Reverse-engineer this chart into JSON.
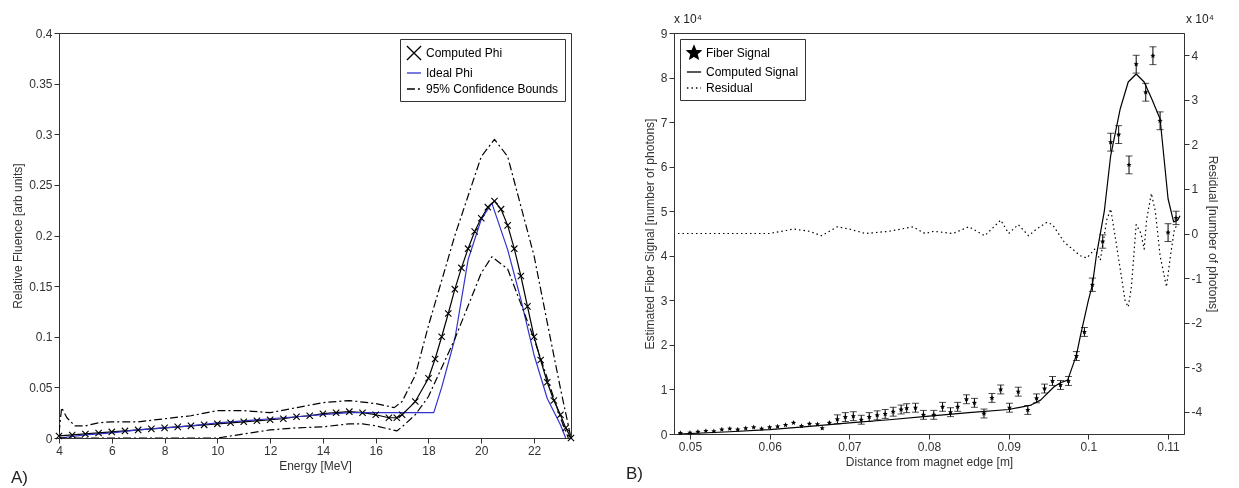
{
  "chart_data": [
    {
      "type": "line",
      "xlabel": "Energy [MeV]",
      "ylabel": "Relative Fluence [arb units]",
      "xlim": [
        4,
        23.4
      ],
      "ylim": [
        0,
        0.4
      ],
      "xticks": [
        4,
        6,
        8,
        10,
        12,
        14,
        16,
        18,
        20,
        22
      ],
      "yticks": [
        0,
        0.05,
        0.1,
        0.15,
        0.2,
        0.25,
        0.3,
        0.35,
        0.4
      ],
      "grid": false,
      "legend": "top right",
      "annotations": [
        "A)"
      ],
      "series": [
        {
          "name": "Computed Phi",
          "color": "#000000",
          "marker": "cross",
          "line_style": "solid",
          "x": [
            4,
            4.5,
            5,
            5.5,
            6,
            6.5,
            7,
            7.5,
            8,
            8.5,
            9,
            9.5,
            10,
            10.5,
            11,
            11.5,
            12,
            12.5,
            13,
            13.5,
            14,
            14.5,
            15,
            15.5,
            16,
            16.5,
            16.8,
            17,
            17.5,
            18,
            18.25,
            18.5,
            18.75,
            19,
            19.25,
            19.5,
            19.75,
            20,
            20.25,
            20.5,
            20.75,
            21,
            21.25,
            21.5,
            21.75,
            22,
            22.25,
            22.5,
            22.75,
            23,
            23.2,
            23.4
          ],
          "values": [
            0.002,
            0.003,
            0.004,
            0.005,
            0.006,
            0.007,
            0.008,
            0.009,
            0.01,
            0.011,
            0.012,
            0.013,
            0.014,
            0.015,
            0.016,
            0.017,
            0.018,
            0.019,
            0.021,
            0.022,
            0.024,
            0.025,
            0.026,
            0.025,
            0.023,
            0.02,
            0.02,
            0.023,
            0.036,
            0.059,
            0.078,
            0.1,
            0.123,
            0.147,
            0.168,
            0.187,
            0.204,
            0.217,
            0.228,
            0.234,
            0.226,
            0.21,
            0.187,
            0.16,
            0.13,
            0.1,
            0.077,
            0.055,
            0.037,
            0.023,
            0.01,
            0
          ]
        },
        {
          "name": "Ideal Phi",
          "color": "#3333cc",
          "line_style": "solid",
          "x": [
            4,
            5,
            6,
            7,
            8,
            9,
            10,
            11,
            12,
            13,
            14,
            15,
            16,
            16.8,
            18.2,
            18.5,
            19,
            19.5,
            20,
            20.4,
            21,
            21.5,
            22,
            22.5,
            23,
            23.2
          ],
          "values": [
            0,
            0.003,
            0.005,
            0.008,
            0.01,
            0.012,
            0.015,
            0.017,
            0.019,
            0.021,
            0.023,
            0.025,
            0.025,
            0.025,
            0.025,
            0.05,
            0.098,
            0.176,
            0.216,
            0.232,
            0.186,
            0.137,
            0.082,
            0.039,
            0.013,
            0
          ]
        },
        {
          "name": "95% Confidence Bounds",
          "color": "#000000",
          "line_style": "dashed",
          "x": [
            4,
            4.1,
            4.3,
            4.6,
            5,
            5.5,
            6,
            7,
            8,
            9,
            10,
            11,
            12,
            13,
            14,
            15,
            16,
            16.7,
            17,
            17.5,
            18,
            19,
            20,
            20.5,
            21,
            22,
            22.5,
            23,
            23.4
          ],
          "values": [
            0.005,
            0.03,
            0.02,
            0.012,
            0.012,
            0.015,
            0.016,
            0.016,
            0.019,
            0.022,
            0.027,
            0.027,
            0.025,
            0.03,
            0.035,
            0.037,
            0.034,
            0.03,
            0.036,
            0.062,
            0.111,
            0.2,
            0.278,
            0.295,
            0.278,
            0.18,
            0.114,
            0.049,
            0
          ]
        },
        {
          "color": "#000000",
          "line_style": "dashed",
          "x": [
            4,
            5,
            6,
            8,
            9,
            10,
            11,
            12,
            13,
            14,
            15,
            15.5,
            16,
            16.8,
            17,
            17.5,
            18,
            19,
            20,
            20.4,
            21,
            22,
            22.5,
            23,
            23.3
          ],
          "values": [
            0,
            0,
            0,
            0,
            0,
            0,
            0.004,
            0.008,
            0.01,
            0.011,
            0.014,
            0.014,
            0.012,
            0.007,
            0.011,
            0.023,
            0.041,
            0.098,
            0.163,
            0.179,
            0.167,
            0.098,
            0.059,
            0.02,
            0
          ]
        }
      ]
    },
    {
      "type": "scatter",
      "xlabel": "Distance from magnet edge [m]",
      "ylabel": "Estimated Fiber Signal [number of photons]",
      "y2label": "Residual [number of photons]",
      "xlim": [
        0.048,
        0.112
      ],
      "xticks": [
        0.05,
        0.06,
        0.07,
        0.08,
        0.09,
        0.1,
        0.11
      ],
      "ylim": [
        0,
        9
      ],
      "yticks": [
        0,
        1,
        2,
        3,
        4,
        5,
        6,
        7,
        8,
        9
      ],
      "y2lim": [
        -4.5,
        4.5
      ],
      "y2ticks": [
        -4,
        -3,
        -2,
        -1,
        0,
        1,
        2,
        3,
        4
      ],
      "grid": false,
      "legend": "top left",
      "annotations": [
        "B)",
        "x 10⁴",
        "x 10⁴"
      ],
      "series": [
        {
          "name": "Fiber Signal",
          "color": "#000000",
          "marker": "star",
          "x": [
            0.0488,
            0.05,
            0.051,
            0.052,
            0.053,
            0.054,
            0.055,
            0.056,
            0.057,
            0.058,
            0.059,
            0.06,
            0.061,
            0.062,
            0.063,
            0.064,
            0.065,
            0.066,
            0.0666,
            0.0675,
            0.0685,
            0.0695,
            0.0705,
            0.0715,
            0.0725,
            0.0735,
            0.0745,
            0.0755,
            0.0765,
            0.0772,
            0.0783,
            0.0793,
            0.0806,
            0.0817,
            0.0827,
            0.0836,
            0.0847,
            0.0857,
            0.0869,
            0.0879,
            0.089,
            0.0901,
            0.0912,
            0.0924,
            0.0935,
            0.0945,
            0.0955,
            0.0965,
            0.0975,
            0.0985,
            0.0995,
            0.1005,
            0.1018,
            0.1028,
            0.1038,
            0.1051,
            0.106,
            0.1072,
            0.1081,
            0.109,
            0.11,
            0.111
          ],
          "values": [
            0.02,
            0.03,
            0.05,
            0.07,
            0.06,
            0.1,
            0.12,
            0.1,
            0.13,
            0.15,
            0.12,
            0.15,
            0.17,
            0.2,
            0.25,
            0.18,
            0.23,
            0.22,
            0.13,
            0.25,
            0.33,
            0.38,
            0.4,
            0.32,
            0.38,
            0.42,
            0.45,
            0.5,
            0.55,
            0.58,
            0.59,
            0.43,
            0.43,
            0.61,
            0.49,
            0.61,
            0.78,
            0.7,
            0.46,
            0.81,
            1,
            0.59,
            0.95,
            0.54,
            0.8,
            1.02,
            1.19,
            1.1,
            1.19,
            1.75,
            2.29,
            3.35,
            4.32,
            6.55,
            6.72,
            6.04,
            8.3,
            7.67,
            8.49,
            7.03,
            4.52,
            4.85
          ],
          "errors": [
            null,
            null,
            null,
            null,
            null,
            null,
            null,
            null,
            null,
            null,
            null,
            null,
            null,
            null,
            null,
            null,
            null,
            null,
            null,
            null,
            0.1,
            0.1,
            0.1,
            0.1,
            0.1,
            0.1,
            0.1,
            0.1,
            0.1,
            0.1,
            0.1,
            0.1,
            0.1,
            0.1,
            0.1,
            0.1,
            0.1,
            0.1,
            0.1,
            0.1,
            0.1,
            0.1,
            0.1,
            0.1,
            0.1,
            0.1,
            0.1,
            0.1,
            0.1,
            0.1,
            0.1,
            0.15,
            0.15,
            0.2,
            0.2,
            0.2,
            0.2,
            0.2,
            0.2,
            0.2,
            0.2,
            0.15
          ]
        },
        {
          "name": "Computed Signal",
          "type": "line",
          "color": "#000000",
          "line_style": "solid",
          "x": [
            0.0485,
            0.055,
            0.06,
            0.065,
            0.07,
            0.075,
            0.08,
            0.085,
            0.09,
            0.0928,
            0.094,
            0.0957,
            0.0965,
            0.0974,
            0.0985,
            0.099,
            0.1,
            0.1005,
            0.101,
            0.102,
            0.1028,
            0.104,
            0.105,
            0.106,
            0.107,
            0.108,
            0.109,
            0.11,
            0.1107,
            0.1112,
            0.1115
          ],
          "values": [
            0,
            0.05,
            0.1,
            0.17,
            0.25,
            0.32,
            0.4,
            0.48,
            0.55,
            0.65,
            0.76,
            1.06,
            1.15,
            1.21,
            1.77,
            2.2,
            3.0,
            3.34,
            4.0,
            5.0,
            6.25,
            7.3,
            7.9,
            8.08,
            7.9,
            7.5,
            7.07,
            5.28,
            4.76,
            4.8,
            4.9
          ]
        },
        {
          "name": "Residual",
          "type": "line",
          "axis": "y2",
          "color": "#000000",
          "line_style": "dotted",
          "x": [
            0.0485,
            0.055,
            0.06,
            0.063,
            0.065,
            0.0665,
            0.0685,
            0.07,
            0.072,
            0.075,
            0.078,
            0.0795,
            0.0806,
            0.083,
            0.085,
            0.087,
            0.089,
            0.09,
            0.0912,
            0.0925,
            0.0935,
            0.0948,
            0.0955,
            0.097,
            0.099,
            0.0998,
            0.1008,
            0.1015,
            0.1023,
            0.1028,
            0.1033,
            0.104,
            0.1046,
            0.105,
            0.1054,
            0.106,
            0.1066,
            0.107,
            0.1073,
            0.1079,
            0.1084,
            0.109,
            0.1098,
            0.1103,
            0.1108,
            0.1112
          ],
          "values": [
            0,
            0,
            0,
            0.1,
            0.05,
            -0.05,
            0.15,
            0.1,
            0,
            0.05,
            0.15,
            0,
            0.05,
            0,
            0.15,
            -0.05,
            0.3,
            0,
            0.2,
            -0.05,
            0.1,
            0.25,
            0.2,
            -0.2,
            -0.5,
            -0.55,
            -0.35,
            -0.6,
            0.3,
            0.55,
            0,
            -0.8,
            -1.5,
            -1.65,
            -1.2,
            0.2,
            0,
            -0.35,
            0.3,
            0.9,
            0.5,
            -0.5,
            -1.2,
            -0.5,
            0.1,
            0.2
          ]
        }
      ]
    }
  ]
}
